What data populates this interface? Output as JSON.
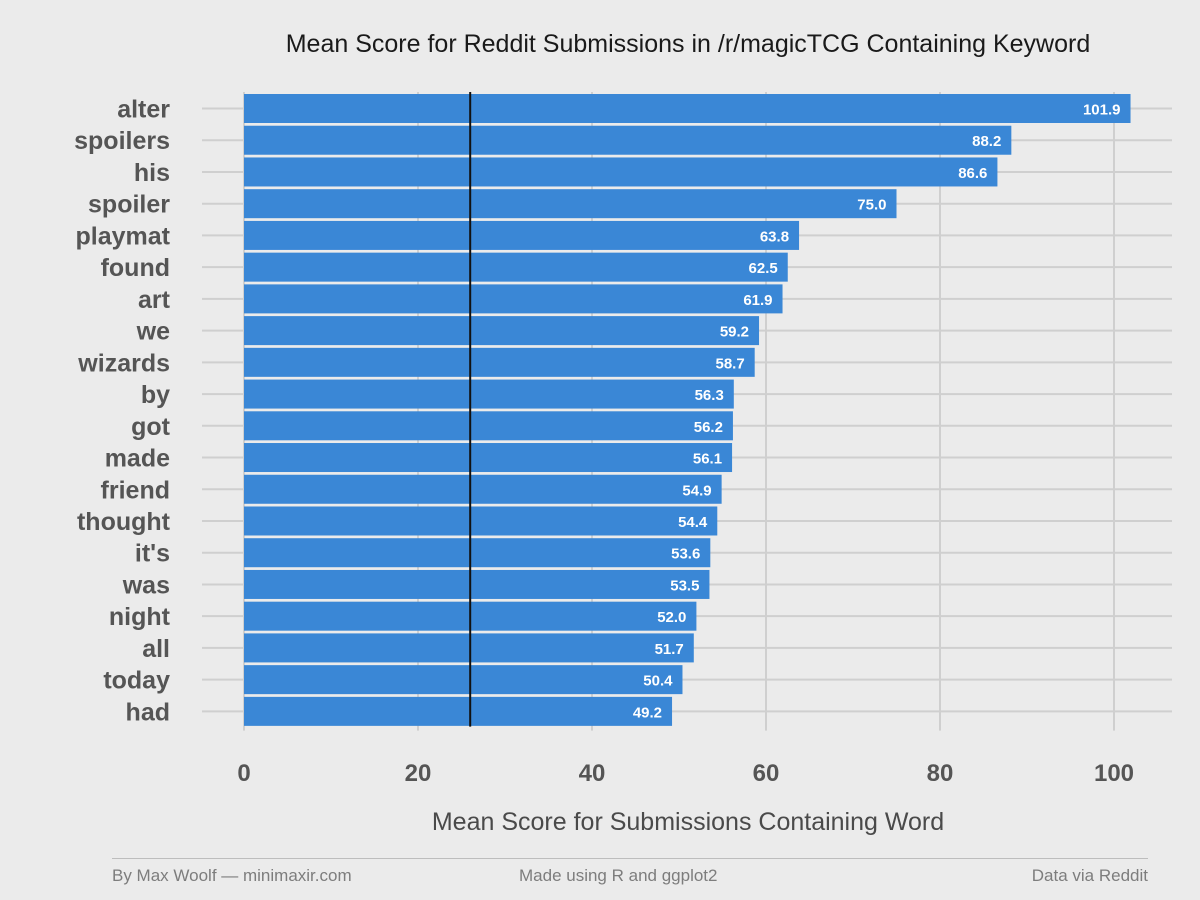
{
  "chart_data": {
    "type": "bar",
    "orientation": "horizontal",
    "title": "Mean Score for Reddit Submissions in /r/magicTCG Containing Keyword",
    "xlabel": "Mean Score for Submissions Containing Word",
    "ylabel": "",
    "categories": [
      "alter",
      "spoilers",
      "his",
      "spoiler",
      "playmat",
      "found",
      "art",
      "we",
      "wizards",
      "by",
      "got",
      "made",
      "friend",
      "thought",
      "it's",
      "was",
      "night",
      "all",
      "today",
      "had"
    ],
    "values": [
      101.9,
      88.2,
      86.6,
      75.0,
      63.8,
      62.5,
      61.9,
      59.2,
      58.7,
      56.3,
      56.2,
      56.1,
      54.9,
      54.4,
      53.6,
      53.5,
      52.0,
      51.7,
      50.4,
      49.2
    ],
    "value_labels": [
      "101.9",
      "88.2",
      "86.6",
      "75.0",
      "63.8",
      "62.5",
      "61.9",
      "59.2",
      "58.7",
      "56.3",
      "56.2",
      "56.1",
      "54.9",
      "54.4",
      "53.6",
      "53.5",
      "52.0",
      "51.7",
      "50.4",
      "49.2"
    ],
    "x_ticks": [
      0,
      20,
      40,
      60,
      80,
      100
    ],
    "x_tick_labels": [
      "0",
      "20",
      "40",
      "60",
      "80",
      "100"
    ],
    "xlim": [
      0,
      106
    ],
    "reference_line": 26,
    "grid": true,
    "bar_color": "#3a87d6",
    "reference_line_color": "#111111"
  },
  "footer": {
    "left": "By Max Woolf — minimaxir.com",
    "center": "Made using R and ggplot2",
    "right": "Data via Reddit"
  }
}
